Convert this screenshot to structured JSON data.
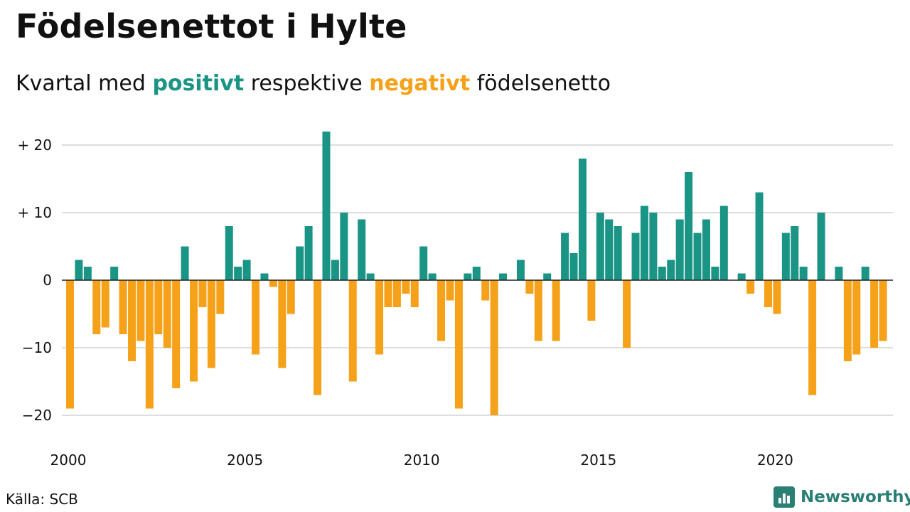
{
  "title": "Födelsenettot i Hylte",
  "subtitle": {
    "prefix": "Kvartal med",
    "positive": "positivt",
    "middle": "respektive",
    "negative": "negativt",
    "suffix": "födelsenetto"
  },
  "source": "Källa: SCB",
  "logo": {
    "text": "Newsworthy",
    "icon": "bar-chart-logo-icon"
  },
  "colors": {
    "positive": "#1a9485",
    "negative": "#f5a11a",
    "grid": "#dddddd",
    "axis": "#222222",
    "brand": "#2a7f74"
  },
  "chart_data": {
    "type": "bar",
    "x_start": "2000 Q1",
    "x_ticks": [
      {
        "year": 2000,
        "label": "2000"
      },
      {
        "year": 2005,
        "label": "2005"
      },
      {
        "year": 2010,
        "label": "2010"
      },
      {
        "year": 2015,
        "label": "2015"
      },
      {
        "year": 2020,
        "label": "2020"
      }
    ],
    "y_ticks": [
      {
        "value": 20,
        "label": "+ 20"
      },
      {
        "value": 10,
        "label": "+ 10"
      },
      {
        "value": 0,
        "label": "0"
      },
      {
        "value": -10,
        "label": "−10"
      },
      {
        "value": -20,
        "label": "−20"
      }
    ],
    "ylim": [
      -24,
      23
    ],
    "grid": true,
    "values": [
      -19,
      3,
      2,
      -8,
      -7,
      2,
      -8,
      -12,
      -9,
      -19,
      -8,
      -10,
      -16,
      5,
      -15,
      -4,
      -13,
      -5,
      8,
      2,
      3,
      -11,
      1,
      -1,
      -13,
      -5,
      5,
      8,
      -17,
      22,
      3,
      10,
      -15,
      9,
      1,
      -11,
      -4,
      -4,
      -2,
      -4,
      5,
      1,
      -9,
      -3,
      -19,
      1,
      2,
      -3,
      -20,
      1,
      0,
      3,
      -2,
      -9,
      1,
      -9,
      7,
      4,
      18,
      -6,
      10,
      9,
      8,
      -10,
      7,
      11,
      10,
      2,
      3,
      9,
      16,
      7,
      9,
      2,
      11,
      0,
      1,
      -2,
      13,
      -4,
      -5,
      7,
      8,
      2,
      -17,
      10,
      0,
      2,
      -12,
      -11,
      2,
      -10,
      -9
    ]
  }
}
